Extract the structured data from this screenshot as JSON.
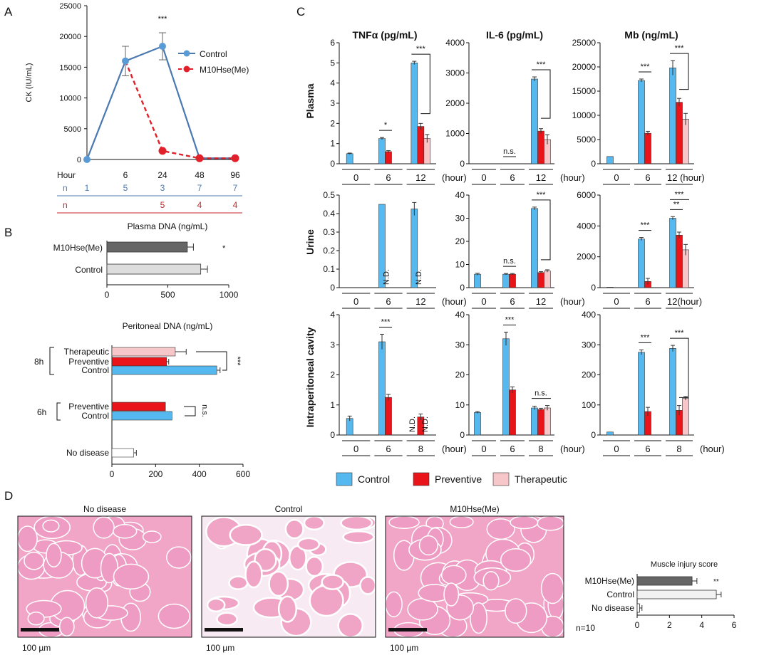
{
  "panels": {
    "a": "A",
    "b": "B",
    "c": "C",
    "d": "D"
  },
  "colors": {
    "control": "#5b9bd5",
    "control_line": "#4a78b0",
    "m10": "#e0202a",
    "control_bar": "#55b8ee",
    "preventive": "#e8141a",
    "therapeutic": "#f7c6c9",
    "dark": "#666666",
    "light": "#dddddd",
    "white": "#ffffff",
    "tissue_fill": "#f1a6c8",
    "tissue_line": "#ffffff"
  },
  "chart_data": [
    {
      "id": "A",
      "type": "line",
      "ylabel": "CK (IU/mL)",
      "ylim": [
        0,
        25000
      ],
      "yticks": [
        "0",
        "5000",
        "10000",
        "15000",
        "20000",
        "25000"
      ],
      "xlabel": "Hour",
      "x": [
        "0",
        "6",
        "24",
        "48",
        "96"
      ],
      "xtick_labels": [
        "6",
        "24",
        "48",
        "96"
      ],
      "series": [
        {
          "name": "Control",
          "values": [
            0,
            16000,
            18400,
            200,
            200
          ],
          "err": [
            0,
            2400,
            2200,
            0,
            0
          ]
        },
        {
          "name": "M10Hse(Me)",
          "values": [
            null,
            16000,
            1400,
            200,
            200
          ],
          "err": [
            0,
            0,
            0,
            0,
            0
          ]
        }
      ],
      "significance": [
        {
          "x": "24",
          "label": "***"
        }
      ],
      "n_label": "n",
      "n_control": [
        "1",
        "5",
        "3",
        "7",
        "7"
      ],
      "n_m10": [
        "5",
        "4",
        "4"
      ]
    },
    {
      "id": "B1",
      "type": "bar",
      "orientation": "horizontal",
      "title": "Plasma DNA (ng/mL)",
      "xlim": [
        0,
        1000
      ],
      "xticks": [
        "0",
        "500",
        "1000"
      ],
      "categories": [
        "M10Hse(Me)",
        "Control"
      ],
      "values": [
        660,
        770
      ],
      "err": [
        50,
        55
      ],
      "significance": [
        {
          "label": "*"
        }
      ]
    },
    {
      "id": "B2",
      "type": "bar",
      "orientation": "horizontal",
      "title": "Peritoneal DNA (ng/mL)",
      "xlim": [
        0,
        600
      ],
      "xticks": [
        "0",
        "200",
        "400",
        "600"
      ],
      "groups": [
        {
          "label": "8h",
          "bars": [
            {
              "label": "Therapeutic",
              "value": 290,
              "err": 50
            },
            {
              "label": "Preventive",
              "value": 250,
              "err": 10
            },
            {
              "label": "Control",
              "value": 480,
              "err": 15
            }
          ],
          "sig": "***"
        },
        {
          "label": "6h",
          "bars": [
            {
              "label": "Preventive",
              "value": 245,
              "err": 0
            },
            {
              "label": "Control",
              "value": 275,
              "err": 0
            }
          ],
          "sig": "n.s."
        },
        {
          "label": "",
          "bars": [
            {
              "label": "No disease",
              "value": 100,
              "err": 12
            }
          ],
          "sig": ""
        }
      ]
    },
    {
      "id": "C",
      "type": "bar",
      "columns": [
        "TNFα (pg/mL)",
        "IL-6 (pg/mL)",
        "Mb (ng/mL)"
      ],
      "rows": [
        "Plasma",
        "Urine",
        "Intraperitoneal cavity"
      ],
      "legend": [
        "Control",
        "Preventive",
        "Therapeutic"
      ],
      "hour_unit": "(hour)",
      "nd": "N.D.",
      "subplots": [
        {
          "ymax": 6,
          "yticks": [
            "0",
            "1",
            "2",
            "3",
            "4",
            "5",
            "6"
          ],
          "groups": [
            "0",
            "6",
            "12"
          ],
          "values": [
            [
              0.5,
              null,
              null
            ],
            [
              1.25,
              0.6,
              null
            ],
            [
              5.0,
              1.85,
              1.25
            ]
          ],
          "err": [
            [
              0.03,
              0,
              0
            ],
            [
              0.05,
              0.05,
              0
            ],
            [
              0.08,
              0.15,
              0.2
            ]
          ],
          "sig": [
            {
              "type": "pair",
              "g": 1,
              "label": "*"
            },
            {
              "type": "cp",
              "g": 2,
              "label": "***"
            }
          ]
        },
        {
          "ymax": 4000,
          "yticks": [
            "0",
            "1000",
            "2000",
            "3000",
            "4000"
          ],
          "groups": [
            "0",
            "6",
            "12"
          ],
          "values": [
            [
              0,
              null,
              null
            ],
            [
              0,
              0,
              null
            ],
            [
              2800,
              1080,
              800
            ]
          ],
          "err": [
            [
              0,
              0,
              0
            ],
            [
              0,
              0,
              0
            ],
            [
              70,
              80,
              160
            ]
          ],
          "sig": [
            {
              "type": "pair",
              "g": 1,
              "label": "n.s."
            },
            {
              "type": "cp",
              "g": 2,
              "label": "***"
            }
          ]
        },
        {
          "ymax": 25000,
          "yticks": [
            "0",
            "5000",
            "10000",
            "15000",
            "20000",
            "25000"
          ],
          "groups": [
            "0",
            "6",
            "12"
          ],
          "values": [
            [
              1500,
              null,
              null
            ],
            [
              17200,
              6300,
              null
            ],
            [
              19800,
              12700,
              9200
            ]
          ],
          "err": [
            [
              0,
              0,
              0
            ],
            [
              300,
              400,
              0
            ],
            [
              1500,
              800,
              1200
            ]
          ],
          "sig": [
            {
              "type": "pair",
              "g": 1,
              "label": "***"
            },
            {
              "type": "cp",
              "g": 2,
              "label": "***"
            }
          ],
          "hour_label": "12 (hour)"
        },
        {
          "ymax": 0.5,
          "yticks": [
            "0",
            "0.1",
            "0.2",
            "0.3",
            "0.4",
            "0.5"
          ],
          "groups": [
            "0",
            "6",
            "12"
          ],
          "values": [
            [
              null,
              null,
              null
            ],
            [
              0.45,
              "ND",
              null
            ],
            [
              0.425,
              "ND",
              null
            ]
          ],
          "err": [
            [
              0,
              0,
              0
            ],
            [
              0,
              0,
              0
            ],
            [
              0.035,
              0,
              0
            ]
          ],
          "nd_first": true,
          "sig": []
        },
        {
          "ymax": 40,
          "yticks": [
            "0",
            "10",
            "20",
            "30",
            "40"
          ],
          "groups": [
            "0",
            "6",
            "12"
          ],
          "values": [
            [
              5.8,
              null,
              null
            ],
            [
              5.8,
              5.8,
              null
            ],
            [
              34.2,
              6.5,
              7.2
            ]
          ],
          "err": [
            [
              0.4,
              0,
              0
            ],
            [
              0.3,
              0.3,
              0
            ],
            [
              0.6,
              0.4,
              0.5
            ]
          ],
          "sig": [
            {
              "type": "pair",
              "g": 1,
              "label": "n.s."
            },
            {
              "type": "cp",
              "g": 2,
              "label": "***"
            }
          ]
        },
        {
          "ymax": 6000,
          "yticks": [
            "0",
            "2000",
            "4000",
            "6000"
          ],
          "groups": [
            "0",
            "6",
            "12"
          ],
          "values": [
            [
              30,
              null,
              null
            ],
            [
              3150,
              400,
              null
            ],
            [
              4500,
              3400,
              2450
            ]
          ],
          "err": [
            [
              0,
              0,
              0
            ],
            [
              100,
              200,
              0
            ],
            [
              100,
              200,
              350
            ]
          ],
          "sig": [
            {
              "type": "pair",
              "g": 1,
              "label": "***"
            },
            {
              "type": "pair",
              "g": 2,
              "label": "**"
            },
            {
              "type": "span",
              "g": 2,
              "label": "***"
            }
          ],
          "hour_label": "12(hour)"
        },
        {
          "ymax": 4,
          "yticks": [
            "0",
            "1",
            "2",
            "3",
            "4"
          ],
          "groups": [
            "0",
            "6",
            "8"
          ],
          "values": [
            [
              0.55,
              null,
              null
            ],
            [
              3.1,
              1.25,
              null
            ],
            [
              "ND",
              0.6,
              "ND"
            ]
          ],
          "err": [
            [
              0.08,
              0,
              0
            ],
            [
              0.25,
              0.1,
              0
            ],
            [
              0,
              0.1,
              0
            ]
          ],
          "sig": [
            {
              "type": "pair",
              "g": 1,
              "label": "***"
            }
          ]
        },
        {
          "ymax": 40,
          "yticks": [
            "0",
            "10",
            "20",
            "30",
            "40"
          ],
          "groups": [
            "0",
            "6",
            "8"
          ],
          "values": [
            [
              7.5,
              null,
              null
            ],
            [
              32,
              15,
              null
            ],
            [
              9,
              8.5,
              9
            ]
          ],
          "err": [
            [
              0.3,
              0,
              0
            ],
            [
              2.2,
              1.0,
              0
            ],
            [
              0.6,
              0.4,
              0.8
            ]
          ],
          "sig": [
            {
              "type": "pair",
              "g": 1,
              "label": "***"
            },
            {
              "type": "span",
              "g": 2,
              "label": "n.s."
            }
          ]
        },
        {
          "ymax": 400,
          "yticks": [
            "0",
            "100",
            "200",
            "300",
            "400"
          ],
          "groups": [
            "0",
            "6",
            "8"
          ],
          "values": [
            [
              10,
              null,
              null
            ],
            [
              275,
              78,
              null
            ],
            [
              288,
              82,
              122
            ]
          ],
          "err": [
            [
              0,
              0,
              0
            ],
            [
              8,
              14,
              0
            ],
            [
              10,
              16,
              6
            ]
          ],
          "sig": [
            {
              "type": "pair",
              "g": 1,
              "label": "***"
            },
            {
              "type": "cp",
              "g": 2,
              "label": "***"
            }
          ]
        }
      ]
    },
    {
      "id": "D",
      "type": "bar",
      "orientation": "horizontal",
      "title": "Muscle injury score",
      "xlim": [
        0,
        6
      ],
      "xticks": [
        "0",
        "2",
        "4",
        "6"
      ],
      "categories": [
        "M10Hse(Me)",
        "Control",
        "No disease"
      ],
      "values": [
        3.4,
        4.9,
        0.15
      ],
      "err": [
        0.3,
        0.3,
        0.15
      ],
      "significance": [
        {
          "label": "**"
        }
      ],
      "n_label": "n=10"
    }
  ],
  "histology": [
    {
      "title": "No disease",
      "scale": "100 µm"
    },
    {
      "title": "Control",
      "scale": "100 µm"
    },
    {
      "title": "M10Hse(Me)",
      "scale": "100 µm"
    }
  ]
}
